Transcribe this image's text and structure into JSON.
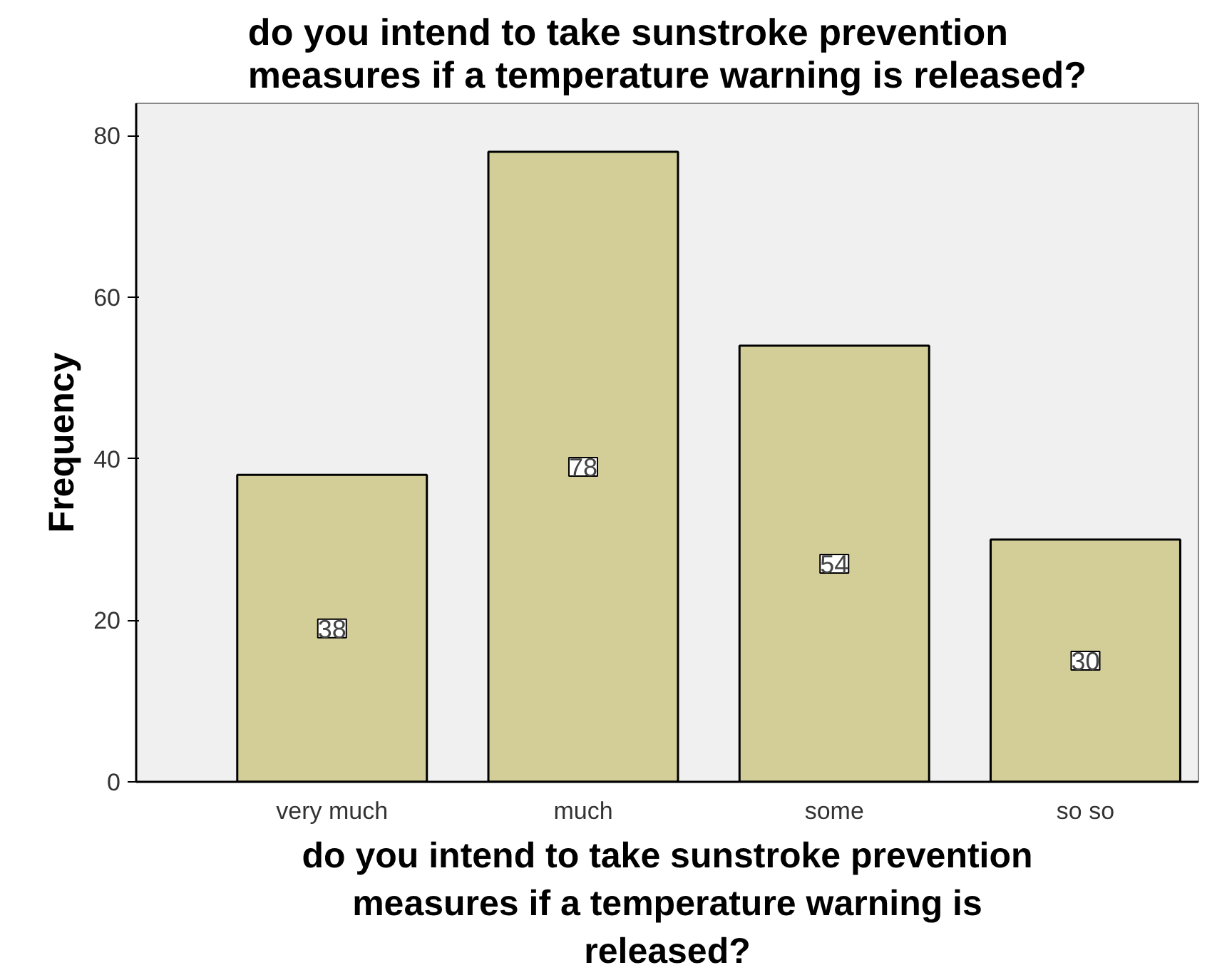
{
  "chart_data": {
    "type": "bar",
    "title": "do you intend to take sunstroke prevention measures if a temperature warning is released?",
    "xlabel": "do you intend to take sunstroke prevention measures if a temperature warning is released?",
    "ylabel": "Frequency",
    "categories": [
      "very much",
      "much",
      "some",
      "so so"
    ],
    "values": [
      38,
      78,
      54,
      30
    ],
    "color": "#d3ce97",
    "ylim": [
      0,
      84
    ],
    "yticks": [
      0,
      20,
      40,
      60,
      80
    ],
    "grid": false,
    "data_labels": true
  }
}
